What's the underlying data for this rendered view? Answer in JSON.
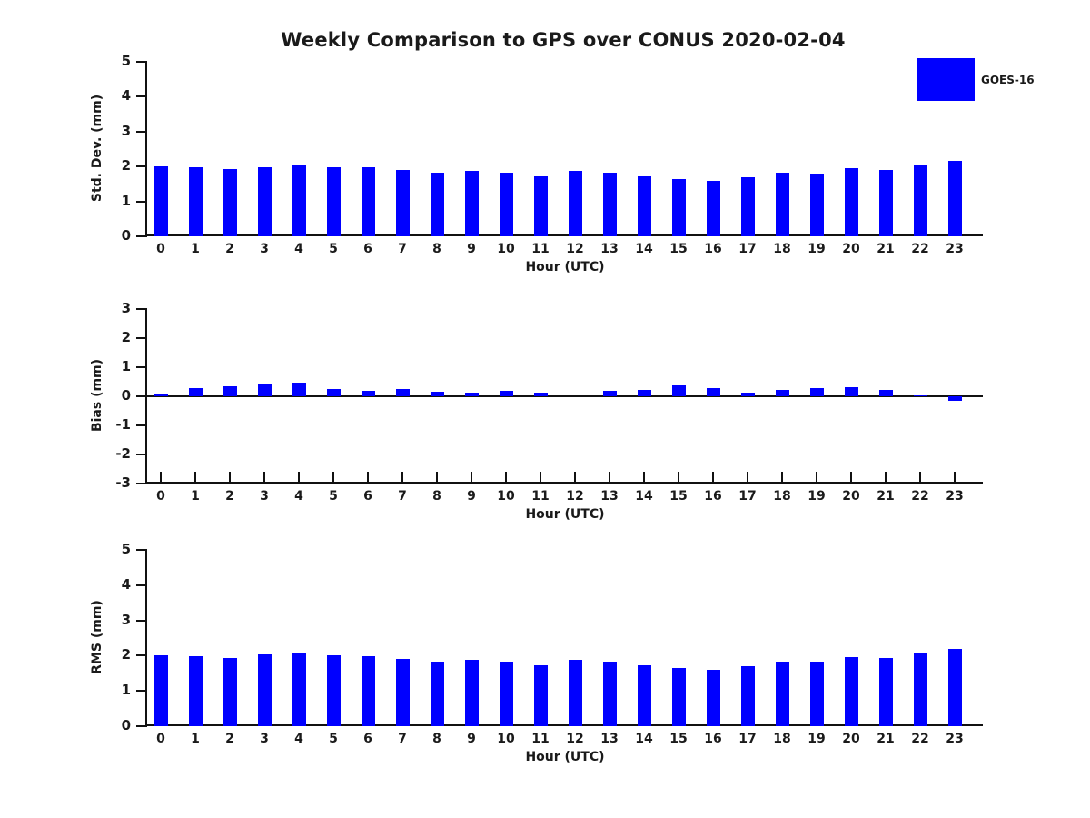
{
  "page": {
    "title": "Weekly Comparison to GPS over CONUS 2020-02-04"
  },
  "legend": {
    "label": "GOES-16"
  },
  "colors": {
    "bar": "#0000FF",
    "axis": "#111111",
    "text": "#1a1a1a"
  },
  "chart_data": [
    {
      "type": "bar",
      "name": "std-dev-panel",
      "title": "Weekly Comparison to GPS over CONUS 2020-02-04",
      "xlabel": "Hour (UTC)",
      "ylabel": "Std. Dev. (mm)",
      "legend": [
        "GOES-16"
      ],
      "legend_position": "upper right outside",
      "grid": false,
      "ylim": [
        0,
        5
      ],
      "yticks": [
        0,
        1,
        2,
        3,
        4,
        5
      ],
      "categories": [
        "0",
        "1",
        "2",
        "3",
        "4",
        "5",
        "6",
        "7",
        "8",
        "9",
        "10",
        "11",
        "12",
        "13",
        "14",
        "15",
        "16",
        "17",
        "18",
        "19",
        "20",
        "21",
        "22",
        "23"
      ],
      "values": [
        2.0,
        1.98,
        1.92,
        1.99,
        2.06,
        1.99,
        1.98,
        1.91,
        1.83,
        1.88,
        1.81,
        1.72,
        1.88,
        1.83,
        1.71,
        1.63,
        1.59,
        1.69,
        1.83,
        1.8,
        1.96,
        1.91,
        2.07,
        2.17
      ]
    },
    {
      "type": "bar",
      "name": "bias-panel",
      "title": "",
      "xlabel": "Hour (UTC)",
      "ylabel": "Bias (mm)",
      "legend": [
        "GOES-16"
      ],
      "grid": false,
      "ylim": [
        -3,
        3
      ],
      "yticks": [
        -3,
        -2,
        -1,
        0,
        1,
        2,
        3
      ],
      "categories": [
        "0",
        "1",
        "2",
        "3",
        "4",
        "5",
        "6",
        "7",
        "8",
        "9",
        "10",
        "11",
        "12",
        "13",
        "14",
        "15",
        "16",
        "17",
        "18",
        "19",
        "20",
        "21",
        "22",
        "23"
      ],
      "values": [
        0.06,
        0.29,
        0.33,
        0.41,
        0.47,
        0.24,
        0.2,
        0.26,
        0.16,
        0.11,
        0.2,
        0.14,
        0.0,
        0.2,
        0.23,
        0.36,
        0.27,
        0.14,
        0.21,
        0.27,
        0.31,
        0.21,
        0.02,
        -0.15
      ]
    },
    {
      "type": "bar",
      "name": "rms-panel",
      "title": "",
      "xlabel": "Hour (UTC)",
      "ylabel": "RMS (mm)",
      "legend": [
        "GOES-16"
      ],
      "grid": false,
      "ylim": [
        0,
        5
      ],
      "yticks": [
        0,
        1,
        2,
        3,
        4,
        5
      ],
      "categories": [
        "0",
        "1",
        "2",
        "3",
        "4",
        "5",
        "6",
        "7",
        "8",
        "9",
        "10",
        "11",
        "12",
        "13",
        "14",
        "15",
        "16",
        "17",
        "18",
        "19",
        "20",
        "21",
        "22",
        "23"
      ],
      "values": [
        2.0,
        1.99,
        1.94,
        2.03,
        2.1,
        2.0,
        1.99,
        1.92,
        1.84,
        1.88,
        1.82,
        1.73,
        1.88,
        1.84,
        1.72,
        1.66,
        1.61,
        1.7,
        1.84,
        1.82,
        1.97,
        1.93,
        2.08,
        2.18
      ]
    }
  ]
}
